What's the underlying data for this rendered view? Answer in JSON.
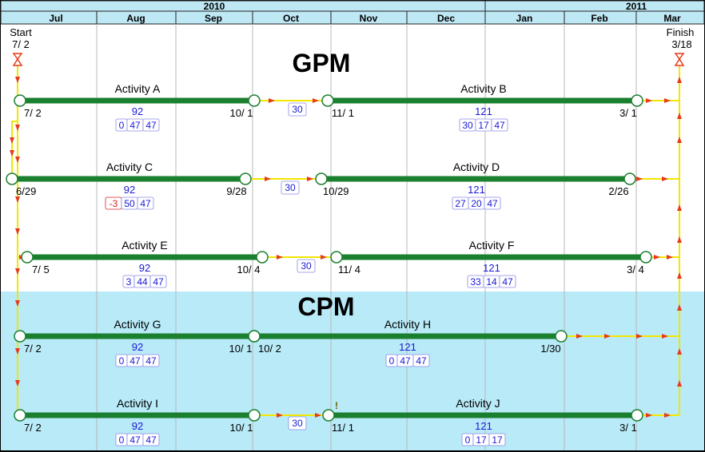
{
  "timescale": {
    "years": [
      {
        "label": "2010"
      },
      {
        "label": "2011"
      }
    ],
    "months": [
      {
        "label": "Jul"
      },
      {
        "label": "Aug"
      },
      {
        "label": "Sep"
      },
      {
        "label": "Oct"
      },
      {
        "label": "Nov"
      },
      {
        "label": "Dec"
      },
      {
        "label": "Jan"
      },
      {
        "label": "Feb"
      },
      {
        "label": "Mar"
      }
    ]
  },
  "milestones": {
    "start": {
      "label": "Start",
      "date": "7/ 2"
    },
    "finish": {
      "label": "Finish",
      "date": "3/18"
    }
  },
  "sections": {
    "gpm": "GPM",
    "cpm": "CPM"
  },
  "activities": [
    {
      "id": "A",
      "name": "Activity A",
      "start_label": "7/ 2",
      "finish_label": "10/ 1",
      "duration": "92",
      "floats": [
        "0",
        "47",
        "47"
      ],
      "float_colors": [
        "#1a1ad6",
        "#1a1ad6",
        "#1a1ad6"
      ]
    },
    {
      "id": "B",
      "name": "Activity B",
      "start_label": "11/ 1",
      "finish_label": "3/ 1",
      "duration": "121",
      "floats": [
        "30",
        "17",
        "47"
      ],
      "float_colors": [
        "#1a1ad6",
        "#1a1ad6",
        "#1a1ad6"
      ]
    },
    {
      "id": "C",
      "name": "Activity C",
      "start_label": "6/29",
      "finish_label": "9/28",
      "duration": "92",
      "floats": [
        "-3",
        "50",
        "47"
      ],
      "float_colors": [
        "#e02020",
        "#1a1ad6",
        "#1a1ad6"
      ]
    },
    {
      "id": "D",
      "name": "Activity D",
      "start_label": "10/29",
      "finish_label": "2/26",
      "duration": "121",
      "floats": [
        "27",
        "20",
        "47"
      ],
      "float_colors": [
        "#1a1ad6",
        "#1a1ad6",
        "#1a1ad6"
      ]
    },
    {
      "id": "E",
      "name": "Activity E",
      "start_label": "7/ 5",
      "finish_label": "10/ 4",
      "duration": "92",
      "floats": [
        "3",
        "44",
        "47"
      ],
      "float_colors": [
        "#1a1ad6",
        "#1a1ad6",
        "#1a1ad6"
      ]
    },
    {
      "id": "F",
      "name": "Activity F",
      "start_label": "11/ 4",
      "finish_label": "3/ 4",
      "duration": "121",
      "floats": [
        "33",
        "14",
        "47"
      ],
      "float_colors": [
        "#1a1ad6",
        "#1a1ad6",
        "#1a1ad6"
      ]
    },
    {
      "id": "G",
      "name": "Activity G",
      "start_label": "7/ 2",
      "finish_label": "10/ 1",
      "duration": "92",
      "floats": [
        "0",
        "47",
        "47"
      ],
      "float_colors": [
        "#1a1ad6",
        "#1a1ad6",
        "#1a1ad6"
      ]
    },
    {
      "id": "H",
      "name": "Activity H",
      "start_label": "10/ 2",
      "finish_label": "1/30",
      "duration": "121",
      "floats": [
        "0",
        "47",
        "47"
      ],
      "float_colors": [
        "#1a1ad6",
        "#1a1ad6",
        "#1a1ad6"
      ]
    },
    {
      "id": "I",
      "name": "Activity I",
      "start_label": "7/ 2",
      "finish_label": "10/ 1",
      "duration": "92",
      "floats": [
        "0",
        "47",
        "47"
      ],
      "float_colors": [
        "#1a1ad6",
        "#1a1ad6",
        "#1a1ad6"
      ]
    },
    {
      "id": "J",
      "name": "Activity J",
      "start_label": "11/ 1",
      "finish_label": "3/ 1",
      "duration": "121",
      "floats": [
        "0",
        "17",
        "17"
      ],
      "float_colors": [
        "#1a1ad6",
        "#1a1ad6",
        "#1a1ad6"
      ]
    }
  ],
  "lags": [
    {
      "from": "A",
      "to": "B",
      "value": "30"
    },
    {
      "from": "C",
      "to": "D",
      "value": "30"
    },
    {
      "from": "E",
      "to": "F",
      "value": "30"
    },
    {
      "from": "I",
      "to": "J",
      "value": "30"
    }
  ],
  "flag_marker": "!",
  "colors": {
    "header_bg": "#bfe8f5",
    "cpm_bg": "#b8eaf8",
    "bar": "#1a7f2e",
    "link": "#f3e600",
    "arrow": "#e53b1a",
    "gridline": "#b8b8b8",
    "node_stroke": "#1a7f2e",
    "text_blue": "#1a1ad6",
    "float_negative": "#e02020"
  }
}
